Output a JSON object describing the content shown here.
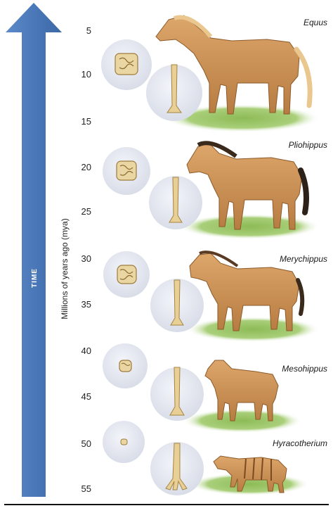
{
  "time_arrow": {
    "label": "TIME"
  },
  "axis": {
    "title": "Millions of years ago (mya)",
    "ticks": [
      "5",
      "10",
      "15",
      "20",
      "25",
      "30",
      "35",
      "40",
      "45",
      "50",
      "55"
    ]
  },
  "species": [
    {
      "name": "Equus"
    },
    {
      "name": "Pliohippus"
    },
    {
      "name": "Merychippus"
    },
    {
      "name": "Mesohippus"
    },
    {
      "name": "Hyracotherium"
    }
  ],
  "colors": {
    "arrow": "#4a78b8",
    "circle": "#e4e7ef",
    "bone": "#e8cf96",
    "horse_body": "#c98f52",
    "grass": "#7fae4a"
  }
}
